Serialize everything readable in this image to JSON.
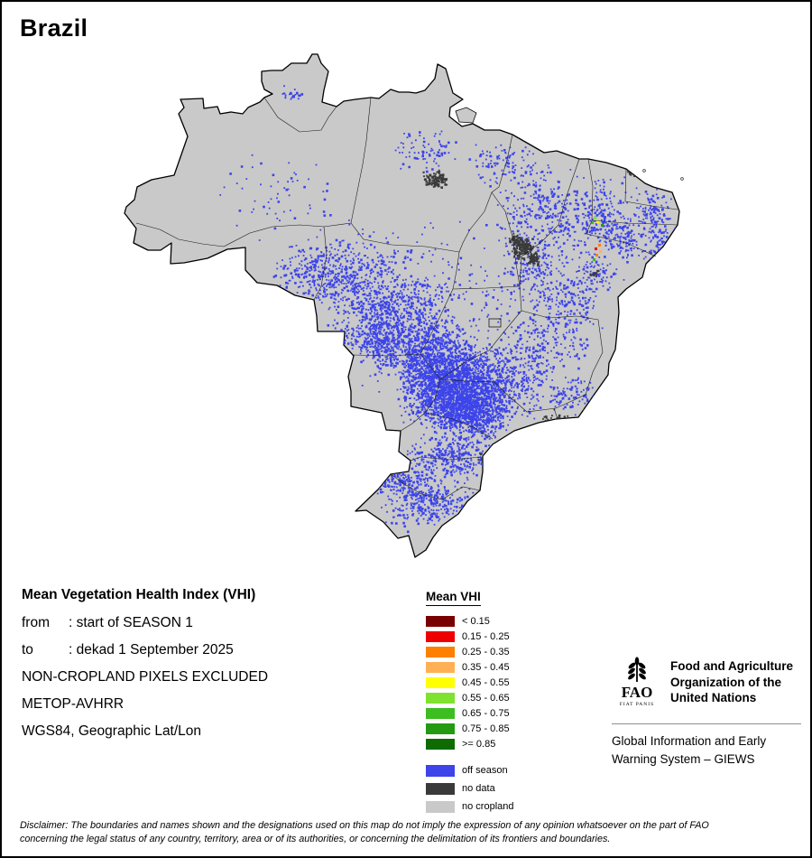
{
  "title": "Brazil",
  "info": {
    "heading": "Mean Vegetation Health Index (VHI)",
    "details": [
      {
        "label": "from",
        "value": ": start of SEASON 1"
      },
      {
        "label": "to",
        "value": ": dekad 1 September 2025"
      },
      {
        "label": "",
        "value": "NON-CROPLAND PIXELS EXCLUDED"
      },
      {
        "label": "",
        "value": "METOP-AVHRR"
      },
      {
        "label": "",
        "value": "WGS84, Geographic Lat/Lon"
      }
    ]
  },
  "legend": {
    "title": "Mean VHI",
    "classes": [
      {
        "label": "< 0.15",
        "color": "#780000"
      },
      {
        "label": "0.15 - 0.25",
        "color": "#ee0000"
      },
      {
        "label": "0.25 - 0.35",
        "color": "#ff7f00"
      },
      {
        "label": "0.35 - 0.45",
        "color": "#ffb055"
      },
      {
        "label": "0.45 - 0.55",
        "color": "#ffff00"
      },
      {
        "label": "0.55 - 0.65",
        "color": "#7fe22e"
      },
      {
        "label": "0.65 - 0.75",
        "color": "#3cbd20"
      },
      {
        "label": "0.75 - 0.85",
        "color": "#239a12"
      },
      {
        "label": ">= 0.85",
        "color": "#0d6b00"
      }
    ],
    "extra": [
      {
        "label": "off season",
        "color": "#3c44ea"
      },
      {
        "label": "no data",
        "color": "#3a3a3a"
      },
      {
        "label": "no cropland",
        "color": "#c9c9c9"
      }
    ]
  },
  "fao": {
    "org": [
      "Food and Agriculture",
      "Organization of the",
      "United Nations"
    ],
    "giews": [
      "Global Information and Early",
      "Warning System – GIEWS"
    ]
  },
  "disclaimer": [
    "Disclaimer: The boundaries and names shown and the designations used on this map do not imply the expression of any opinion whatsoever on the part of FAO",
    "concerning the legal status of any country, territory, area or of its authorities, or concerning the delimitation of its frontiers and boundaries."
  ]
}
